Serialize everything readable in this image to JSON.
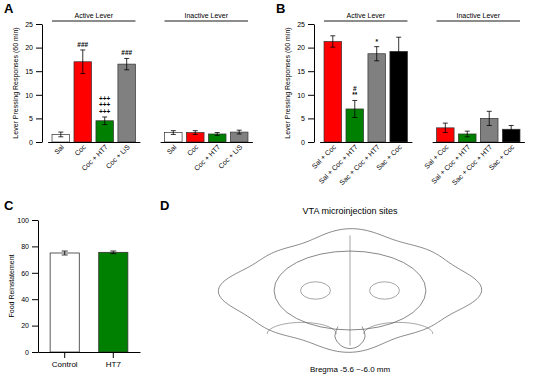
{
  "chart_data": [
    {
      "type": "bar",
      "title": "A",
      "categories": [
        "Sal",
        "Coc",
        "Coc + HT7",
        "Coc + LiS"
      ],
      "colors": [
        "white",
        "red",
        "green",
        "gray"
      ],
      "series": [
        {
          "name": "Active Lever",
          "values": [
            1.6,
            17.0,
            4.5,
            16.5
          ],
          "errors": [
            0.5,
            2.5,
            0.8,
            1.2
          ],
          "annotations": [
            null,
            "###",
            "+++\n+++\n+++",
            "###"
          ]
        },
        {
          "name": "Inactive Lever",
          "values": [
            2.0,
            2.0,
            1.7,
            2.1
          ],
          "errors": [
            0.4,
            0.4,
            0.3,
            0.4
          ]
        }
      ],
      "ylabel": "Lever Pressing Responses (60 min)",
      "ylim": [
        0,
        25
      ],
      "yticks": [
        0,
        5,
        10,
        15,
        20,
        25
      ]
    },
    {
      "type": "bar",
      "title": "B",
      "categories": [
        "Sal + Coc",
        "Sal + Coc + HT7",
        "Sac + Coc + HT7",
        "Sac + Coc"
      ],
      "colors": [
        "red",
        "green",
        "gray",
        "black"
      ],
      "series": [
        {
          "name": "Active Lever",
          "values": [
            21.3,
            7.0,
            18.7,
            19.2
          ],
          "errors": [
            1.2,
            1.8,
            1.5,
            3.0
          ],
          "annotations": [
            null,
            "#\n**",
            "*",
            null
          ]
        },
        {
          "name": "Inactive Lever",
          "values": [
            3.0,
            1.7,
            5.0,
            2.7
          ],
          "errors": [
            1.0,
            0.6,
            1.5,
            0.8
          ]
        }
      ],
      "ylabel": "Lever Pressing Responses (60 min)",
      "ylim": [
        0,
        25
      ],
      "yticks": [
        0,
        5,
        10,
        15,
        20,
        25
      ]
    },
    {
      "type": "bar",
      "title": "C",
      "categories": [
        "Control",
        "HT7"
      ],
      "values": [
        75.0,
        75.5
      ],
      "errors": [
        1.5,
        1.0
      ],
      "colors": [
        "white",
        "green"
      ],
      "ylabel": "Food Reinstatement",
      "ylim": [
        0,
        100
      ],
      "yticks": [
        0,
        20,
        40,
        60,
        80,
        100
      ]
    },
    {
      "type": "diagram",
      "title": "D",
      "subtitle": "VTA microinjection sites",
      "annotations": [
        "Bregma -5.6 ~-6.0 mm"
      ]
    }
  ]
}
